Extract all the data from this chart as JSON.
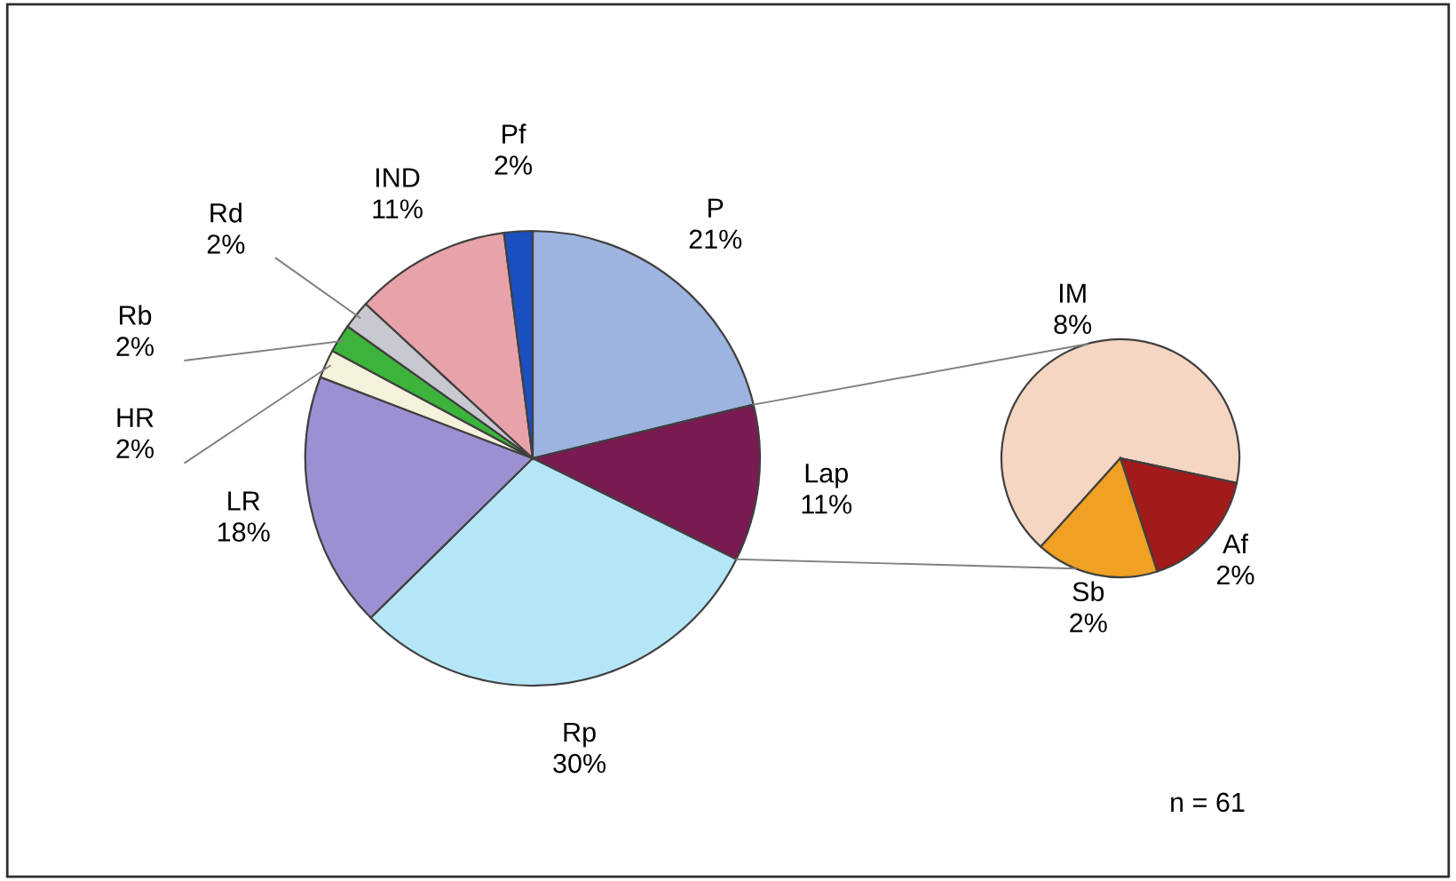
{
  "chart_data": [
    {
      "type": "pie",
      "categories": [
        "P",
        "Lap",
        "Rp",
        "LR",
        "HR",
        "Rb",
        "Rd",
        "IND",
        "Pf"
      ],
      "values": [
        21,
        11,
        30,
        18,
        2,
        2,
        2,
        11,
        2
      ],
      "value_labels": [
        "21%",
        "11%",
        "30%",
        "18%",
        "2%",
        "2%",
        "2%",
        "11%",
        "2%"
      ],
      "colors": [
        "#9db3e0",
        "#7a1a52",
        "#b5e6f7",
        "#9d90d2",
        "#f5f2dc",
        "#3cb43c",
        "#c8c8d0",
        "#e8a2aa",
        "#1a4fc0"
      ],
      "annotations": [
        "n = 61"
      ]
    },
    {
      "type": "pie",
      "categories": [
        "IM",
        "Af",
        "Sb"
      ],
      "values": [
        8,
        2,
        2
      ],
      "value_labels": [
        "8%",
        "2%",
        "2%"
      ],
      "colors": [
        "#f5d6c2",
        "#a31a1a",
        "#f0a022"
      ]
    }
  ]
}
